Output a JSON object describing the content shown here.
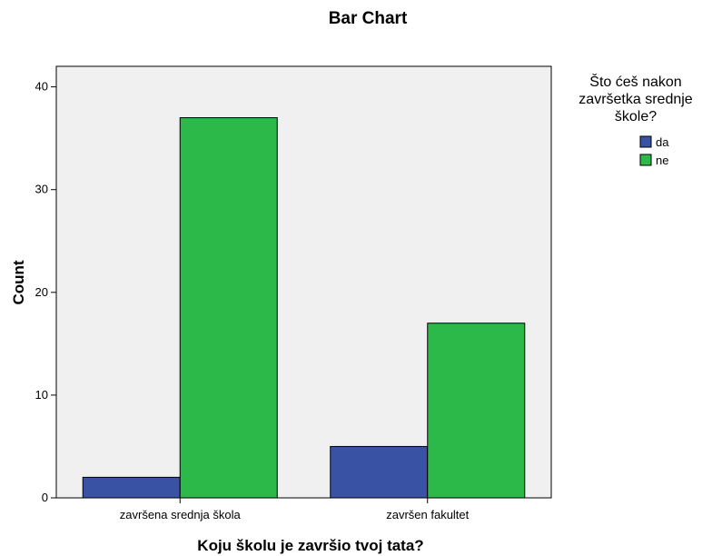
{
  "chart_data": {
    "type": "bar",
    "title": "Bar Chart",
    "xlabel": "Koju školu je završio tvoj tata?",
    "ylabel": "Count",
    "categories": [
      "završena srednja škola",
      "završen fakultet"
    ],
    "series": [
      {
        "name": "da",
        "values": [
          2,
          5
        ],
        "color": "#3a52a4"
      },
      {
        "name": "ne",
        "values": [
          37,
          17
        ],
        "color": "#2db84a"
      }
    ],
    "ylim": [
      0,
      42
    ],
    "yticks": [
      0,
      10,
      20,
      30,
      40
    ],
    "grid": false,
    "legend": {
      "title_lines": [
        "Što ćeš nakon",
        "završetka srednje",
        "škole?"
      ],
      "placement": "right"
    },
    "plot_background": "#f0f0f0"
  }
}
